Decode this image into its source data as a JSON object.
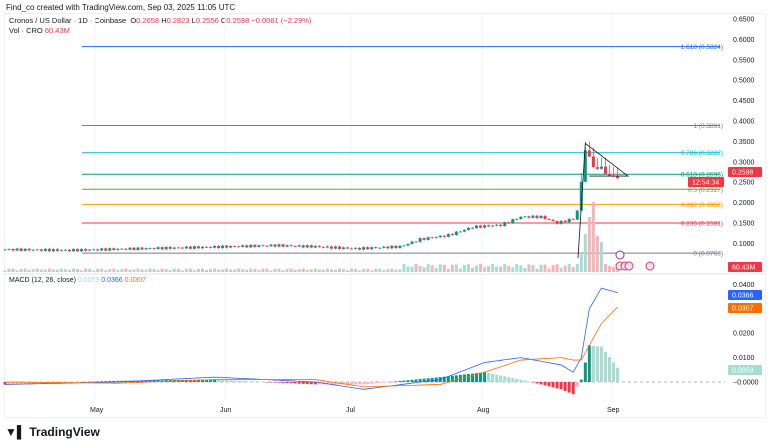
{
  "header": {
    "credit": "Find_co created with TradingView.com, Sep 03, 2025 11:05 UTC"
  },
  "legend": {
    "symbol": "Cronos / US Dollar · 1D · Coinbase",
    "o_label": "O",
    "open": "0.2658",
    "h_label": "H",
    "high": "0.2823",
    "l_label": "L",
    "low": "0.2556",
    "c_label": "C",
    "close": "0.2598",
    "change": "−0.0061 (−2.29%)",
    "vol_label": "Vol · CRO",
    "vol_value": "60.43M"
  },
  "macd": {
    "label": "MACD (12, 26, close)",
    "hist": "0.0059",
    "macd": "0.0366",
    "signal": "0.0307"
  },
  "colors": {
    "up": "#089981",
    "down": "#f23645",
    "macd": "#2962ff",
    "signal": "#ff6d00"
  },
  "price_axis": [
    "0.6500",
    "0.6000",
    "0.5500",
    "0.5000",
    "0.4500",
    "0.4000",
    "0.3500",
    "0.3000",
    "0.2500",
    "0.2000",
    "0.1500",
    "0.1000"
  ],
  "macd_axis": [
    "0.0400",
    "0.0200",
    "0.0100",
    "−0.0000"
  ],
  "time_axis": [
    "May",
    "Jun",
    "Jul",
    "Aug",
    "Sep"
  ],
  "price_tag": {
    "price": "0.2598",
    "countdown": "12:54:34"
  },
  "volume_tag": "60.43M",
  "fib_levels": [
    {
      "label": "1.618 (0.5824)",
      "value": 0.5824,
      "color": "#2962ff"
    },
    {
      "label": "1 (0.3891)",
      "value": 0.3891,
      "color": "#787b86"
    },
    {
      "label": "0.786 (0.3222)",
      "value": 0.3222,
      "color": "#00bcd4"
    },
    {
      "label": "0.618 (0.2696)",
      "value": 0.2696,
      "color": "#089981"
    },
    {
      "label": "0.5 (0.2327)",
      "value": 0.2327,
      "color": "#4caf50"
    },
    {
      "label": "0.382 (0.1958)",
      "value": 0.1958,
      "color": "#ff9800"
    },
    {
      "label": "0.236 (0.1501)",
      "value": 0.1501,
      "color": "#f23645"
    },
    {
      "label": "0 (0.0763)",
      "value": 0.0763,
      "color": "#787b86"
    }
  ],
  "chart_data": {
    "type": "candlestick",
    "price_path": [
      [
        "Apr 4",
        0.085
      ],
      [
        "Apr 20",
        0.083
      ],
      [
        "May 1",
        0.086
      ],
      [
        "May 20",
        0.09
      ],
      [
        "Jun 10",
        0.095
      ],
      [
        "Jun 20",
        0.092
      ],
      [
        "Jun 30",
        0.087
      ],
      [
        "Jul 10",
        0.092
      ],
      [
        "Jul 15",
        0.11
      ],
      [
        "Jul 22",
        0.12
      ],
      [
        "Jul 28",
        0.14
      ],
      [
        "Aug 5",
        0.145
      ],
      [
        "Aug 10",
        0.165
      ],
      [
        "Aug 15",
        0.165
      ],
      [
        "Aug 19",
        0.15
      ],
      [
        "Aug 23",
        0.16
      ],
      [
        "Aug 24",
        0.18
      ],
      [
        "Aug 25",
        0.25
      ],
      [
        "Aug 26",
        0.33
      ],
      [
        "Aug 27",
        0.31
      ],
      [
        "Aug 28",
        0.29
      ],
      [
        "Aug 29",
        0.28
      ],
      [
        "Aug 30",
        0.29
      ],
      [
        "Aug 31",
        0.27
      ],
      [
        "Sep 1",
        0.265
      ],
      [
        "Sep 2",
        0.2658
      ],
      [
        "Sep 3",
        0.2598
      ]
    ],
    "macd_path": [
      [
        "Apr 4",
        -0.001,
        0.0
      ],
      [
        "May 1",
        0.0,
        -0.0005
      ],
      [
        "May 25",
        0.002,
        0.001
      ],
      [
        "Jun 20",
        0.0,
        0.001
      ],
      [
        "Jul 1",
        -0.003,
        -0.002
      ],
      [
        "Jul 20",
        0.001,
        -0.001
      ],
      [
        "Jul 31",
        0.008,
        0.004
      ],
      [
        "Aug 10",
        0.01,
        0.009
      ],
      [
        "Aug 20",
        0.007,
        0.01
      ],
      [
        "Aug 23",
        0.004,
        0.009
      ],
      [
        "Aug 25",
        0.01,
        0.009
      ],
      [
        "Aug 27",
        0.03,
        0.015
      ],
      [
        "Aug 30",
        0.0385,
        0.024
      ],
      [
        "Sep 3",
        0.0366,
        0.0307
      ]
    ]
  }
}
